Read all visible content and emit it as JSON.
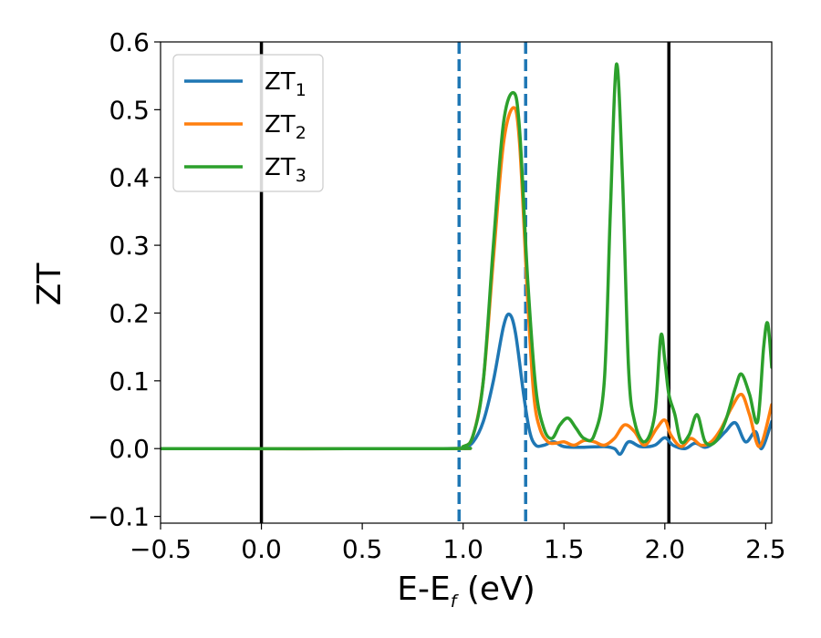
{
  "chart_data": {
    "type": "line",
    "ylabel": "ZT",
    "xlabel": {
      "main": "E-E",
      "subscript": "f",
      "unit": " (eV)"
    },
    "xlim": [
      -0.5,
      2.53
    ],
    "ylim": [
      -0.11,
      0.6
    ],
    "xticks": [
      -0.5,
      0.0,
      0.5,
      1.0,
      1.5,
      2.0,
      2.5
    ],
    "xtick_labels": [
      "−0.5",
      "0.0",
      "0.5",
      "1.0",
      "1.5",
      "2.0",
      "2.5"
    ],
    "yticks": [
      -0.1,
      0.0,
      0.1,
      0.2,
      0.3,
      0.4,
      0.5,
      0.6
    ],
    "ytick_labels": [
      "−0.1",
      "0.0",
      "0.1",
      "0.2",
      "0.3",
      "0.4",
      "0.5",
      "0.6"
    ],
    "grid": false,
    "legend_position": "top-left",
    "vertical_lines": [
      {
        "x": 0.0,
        "style": "solid",
        "color": "#000000"
      },
      {
        "x": 2.02,
        "style": "solid",
        "color": "#000000"
      },
      {
        "x": 0.98,
        "style": "dashed",
        "color": "#1f77b4"
      },
      {
        "x": 1.31,
        "style": "dashed",
        "color": "#1f77b4"
      }
    ],
    "series": [
      {
        "name": "ZT",
        "subscript": "1",
        "color": "#1f77b4",
        "points": [
          [
            -0.5,
            0
          ],
          [
            0.9,
            0
          ],
          [
            1.0,
            0.002
          ],
          [
            1.05,
            0.01
          ],
          [
            1.1,
            0.04
          ],
          [
            1.15,
            0.1
          ],
          [
            1.2,
            0.18
          ],
          [
            1.23,
            0.198
          ],
          [
            1.26,
            0.17
          ],
          [
            1.3,
            0.08
          ],
          [
            1.33,
            0.025
          ],
          [
            1.36,
            0.005
          ],
          [
            1.4,
            0.005
          ],
          [
            1.45,
            0.01
          ],
          [
            1.5,
            0.003
          ],
          [
            1.6,
            0.002
          ],
          [
            1.7,
            0.003
          ],
          [
            1.75,
            0.0
          ],
          [
            1.78,
            -0.008
          ],
          [
            1.82,
            0.01
          ],
          [
            1.88,
            0.003
          ],
          [
            1.95,
            0.005
          ],
          [
            2.0,
            0.016
          ],
          [
            2.04,
            0.005
          ],
          [
            2.1,
            0.0
          ],
          [
            2.15,
            0.008
          ],
          [
            2.2,
            0.002
          ],
          [
            2.25,
            0.01
          ],
          [
            2.3,
            0.025
          ],
          [
            2.35,
            0.038
          ],
          [
            2.4,
            0.01
          ],
          [
            2.45,
            0.025
          ],
          [
            2.48,
            0.0
          ],
          [
            2.53,
            0.04
          ]
        ]
      },
      {
        "name": "ZT",
        "subscript": "2",
        "color": "#ff7f0e",
        "points": [
          [
            -0.5,
            0
          ],
          [
            0.9,
            0
          ],
          [
            1.0,
            0.003
          ],
          [
            1.05,
            0.02
          ],
          [
            1.1,
            0.1
          ],
          [
            1.15,
            0.28
          ],
          [
            1.2,
            0.45
          ],
          [
            1.25,
            0.503
          ],
          [
            1.28,
            0.45
          ],
          [
            1.32,
            0.22
          ],
          [
            1.35,
            0.08
          ],
          [
            1.38,
            0.03
          ],
          [
            1.42,
            0.01
          ],
          [
            1.46,
            0.008
          ],
          [
            1.5,
            0.01
          ],
          [
            1.55,
            0.005
          ],
          [
            1.6,
            0.012
          ],
          [
            1.65,
            0.01
          ],
          [
            1.7,
            0.005
          ],
          [
            1.75,
            0.015
          ],
          [
            1.8,
            0.035
          ],
          [
            1.85,
            0.025
          ],
          [
            1.9,
            0.005
          ],
          [
            1.96,
            0.03
          ],
          [
            2.0,
            0.042
          ],
          [
            2.03,
            0.02
          ],
          [
            2.08,
            0.003
          ],
          [
            2.13,
            0.015
          ],
          [
            2.18,
            0.005
          ],
          [
            2.23,
            0.01
          ],
          [
            2.28,
            0.03
          ],
          [
            2.33,
            0.06
          ],
          [
            2.38,
            0.08
          ],
          [
            2.42,
            0.05
          ],
          [
            2.47,
            0.003
          ],
          [
            2.53,
            0.065
          ]
        ]
      },
      {
        "name": "ZT",
        "subscript": "3",
        "color": "#2ca02c",
        "points": [
          [
            -0.5,
            0
          ],
          [
            0.9,
            0
          ],
          [
            1.0,
            0.003
          ],
          [
            1.05,
            0.02
          ],
          [
            1.1,
            0.1
          ],
          [
            1.15,
            0.3
          ],
          [
            1.2,
            0.48
          ],
          [
            1.25,
            0.525
          ],
          [
            1.28,
            0.47
          ],
          [
            1.32,
            0.25
          ],
          [
            1.36,
            0.09
          ],
          [
            1.4,
            0.03
          ],
          [
            1.44,
            0.015
          ],
          [
            1.48,
            0.035
          ],
          [
            1.52,
            0.045
          ],
          [
            1.56,
            0.03
          ],
          [
            1.6,
            0.015
          ],
          [
            1.65,
            0.02
          ],
          [
            1.7,
            0.1
          ],
          [
            1.73,
            0.35
          ],
          [
            1.76,
            0.567
          ],
          [
            1.79,
            0.4
          ],
          [
            1.82,
            0.12
          ],
          [
            1.85,
            0.04
          ],
          [
            1.9,
            0.01
          ],
          [
            1.95,
            0.05
          ],
          [
            1.98,
            0.166
          ],
          [
            2.0,
            0.13
          ],
          [
            2.02,
            0.08
          ],
          [
            2.05,
            0.05
          ],
          [
            2.08,
            0.01
          ],
          [
            2.12,
            0.02
          ],
          [
            2.16,
            0.05
          ],
          [
            2.2,
            0.01
          ],
          [
            2.25,
            0.01
          ],
          [
            2.3,
            0.04
          ],
          [
            2.35,
            0.09
          ],
          [
            2.38,
            0.11
          ],
          [
            2.42,
            0.08
          ],
          [
            2.46,
            0.04
          ],
          [
            2.49,
            0.15
          ],
          [
            2.51,
            0.185
          ],
          [
            2.53,
            0.12
          ]
        ]
      }
    ]
  }
}
